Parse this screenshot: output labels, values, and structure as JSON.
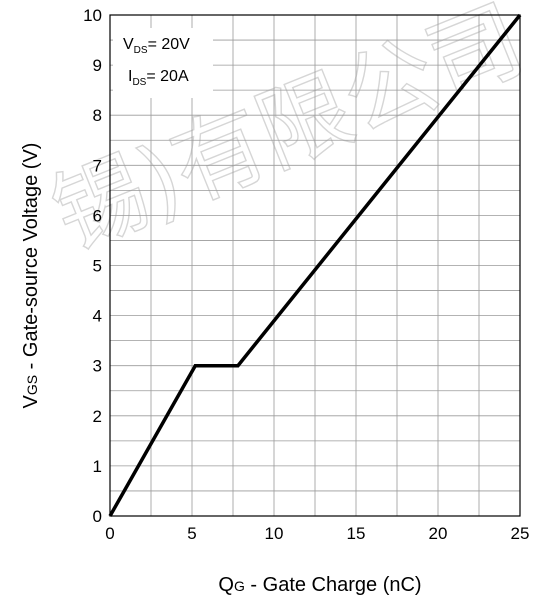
{
  "chart_data": {
    "type": "line",
    "xlabel": {
      "main": "Q",
      "sub": "G",
      "rest": " - Gate Charge (nC)"
    },
    "ylabel": {
      "main": "V",
      "sub": "GS",
      "rest": " - Gate-source Voltage (V)"
    },
    "xlim": [
      0,
      25
    ],
    "ylim": [
      0,
      10
    ],
    "x_ticks": [
      0,
      5,
      10,
      15,
      20,
      25
    ],
    "y_ticks": [
      0,
      1,
      2,
      3,
      4,
      5,
      6,
      7,
      8,
      9,
      10
    ],
    "grid": true,
    "minor_grid_step": {
      "x": 2.5,
      "y": 0.5
    },
    "line_color": "#000000",
    "series": [
      {
        "x": [
          0,
          5.2,
          7.8,
          25
        ],
        "y": [
          0,
          3,
          3,
          10
        ]
      }
    ],
    "annotation": [
      {
        "main": "V",
        "sub": "DS",
        "rest": "= 20V"
      },
      {
        "main": "I",
        "sub": "DS",
        "rest": "= 20A"
      }
    ]
  },
  "watermark": "锡)有限公司"
}
